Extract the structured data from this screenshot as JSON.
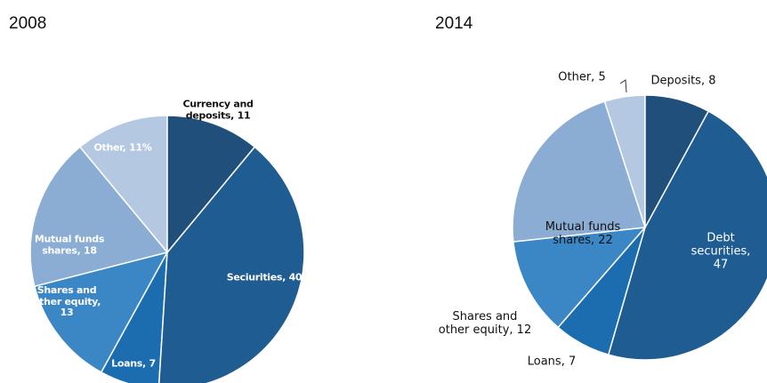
{
  "chart_data": [
    {
      "type": "pie",
      "title": "2008",
      "categories": [
        "Currency and deposits, 11",
        "Seciurities, 40",
        "Loans, 7",
        "Shares and other equity, 13",
        "Mutual funds shares, 18",
        "Other, 11%"
      ],
      "values": [
        11,
        40,
        7,
        13,
        18,
        11
      ],
      "colors": [
        "#1f4f7a",
        "#1f5c92",
        "#1b6db0",
        "#3b86c5",
        "#8badd3",
        "#b5c8e1"
      ]
    },
    {
      "type": "pie",
      "title": "2014",
      "categories": [
        "Deposits, 8",
        "Debt securities, 47",
        "Loans, 7",
        "Shares and other equity, 12",
        "Mutual funds shares, 22",
        "Other, 5"
      ],
      "values": [
        8,
        47,
        7,
        12,
        22,
        5
      ],
      "colors": [
        "#1f4f7a",
        "#1f5c92",
        "#1b6db0",
        "#3b86c5",
        "#8badd3",
        "#b5c8e1"
      ]
    }
  ]
}
